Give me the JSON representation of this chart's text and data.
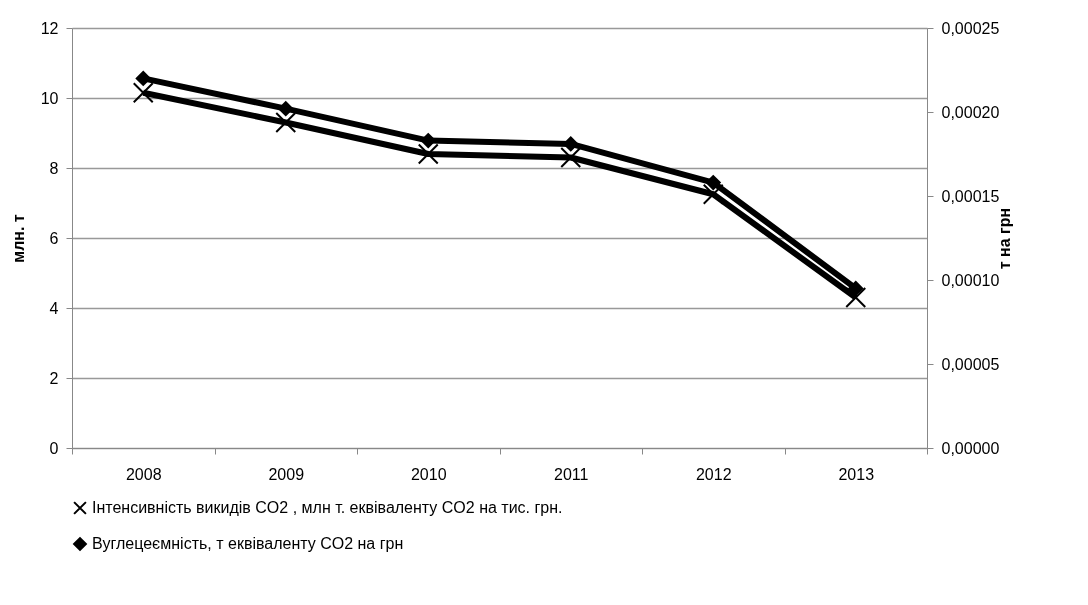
{
  "chart_data": {
    "type": "line",
    "categories": [
      "2008",
      "2009",
      "2010",
      "2011",
      "2012",
      "2013"
    ],
    "ylabel": "млн. т",
    "y2label": "т на грн",
    "ylim": [
      0,
      12
    ],
    "yticks": [
      0,
      2,
      4,
      6,
      8,
      10,
      12
    ],
    "y2lim": [
      0,
      0.00025
    ],
    "y2ticks": [
      {
        "value": 0,
        "label": "0,00000"
      },
      {
        "value": 5e-05,
        "label": "0,00005"
      },
      {
        "value": 0.0001,
        "label": "0,00010"
      },
      {
        "value": 0.00015,
        "label": "0,00015"
      },
      {
        "value": 0.0002,
        "label": "0,00020"
      },
      {
        "value": 0.00025,
        "label": "0,00025"
      }
    ],
    "grid": "y",
    "legend": "bottom",
    "series": [
      {
        "name": "Інтенсивність  викидів  CO2 , млн т. еквіваленту CO2 на тис. грн.",
        "color": "#000000",
        "marker": "cross",
        "values": [
          10.15,
          9.3,
          8.4,
          8.3,
          7.25,
          4.3
        ]
      },
      {
        "name": "Вуглецеємність, т еквіваленту CO2 на грн",
        "color": "#000000",
        "marker": "diamond",
        "axis": "y2",
        "values": [
          0.00022,
          0.000202,
          0.000183,
          0.000181,
          0.000158,
          9.5e-05
        ]
      }
    ]
  }
}
